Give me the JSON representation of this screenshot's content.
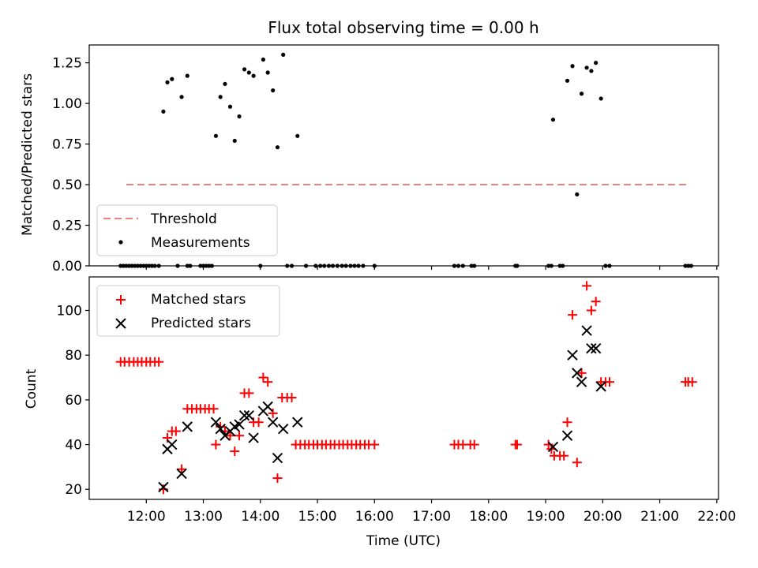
{
  "chart_data": [
    {
      "type": "scatter",
      "title": "Flux total observing time = 0.00 h",
      "xlabel": "",
      "ylabel": "Matched/Predicted stars",
      "ylim": [
        0,
        1.36
      ],
      "yticks": [
        0.0,
        0.25,
        0.5,
        0.75,
        1.0,
        1.25
      ],
      "ytick_labels": [
        "0.00",
        "0.25",
        "0.50",
        "0.75",
        "1.00",
        "1.25"
      ],
      "legend_position": "lower-left",
      "threshold": {
        "name": "Threshold",
        "y": 0.5,
        "x_start": 11.65,
        "x_end": 21.5,
        "color": "#f08080"
      },
      "series": [
        {
          "name": "Measurements",
          "color": "#000000",
          "x": [
            12.3,
            12.37,
            12.45,
            12.62,
            12.72,
            13.22,
            13.3,
            13.38,
            13.47,
            13.55,
            13.63,
            13.72,
            13.8,
            13.88,
            14.05,
            14.13,
            14.22,
            14.3,
            14.4,
            14.65,
            19.13,
            19.38,
            19.47,
            19.55,
            19.63,
            19.72,
            19.8,
            19.88,
            19.97,
            11.55,
            11.6,
            11.65,
            11.7,
            11.75,
            11.8,
            11.85,
            11.9,
            11.95,
            12.0,
            12.05,
            12.1,
            12.15,
            12.22,
            12.55,
            12.72,
            12.77,
            12.95,
            13.0,
            13.05,
            13.1,
            13.15,
            14.0,
            14.47,
            14.55,
            14.8,
            14.97,
            15.05,
            15.12,
            15.2,
            15.27,
            15.35,
            15.43,
            15.5,
            15.58,
            15.65,
            15.72,
            15.8,
            16.0,
            17.4,
            17.47,
            17.55,
            17.7,
            17.75,
            18.47,
            18.5,
            19.05,
            19.1,
            19.25,
            19.3,
            20.05,
            20.12,
            21.45,
            21.5,
            21.55
          ],
          "y": [
            0.95,
            1.13,
            1.15,
            1.04,
            1.17,
            0.8,
            1.04,
            1.12,
            0.98,
            0.77,
            0.92,
            1.21,
            1.19,
            1.17,
            1.27,
            1.19,
            1.08,
            0.73,
            1.3,
            0.8,
            0.9,
            1.14,
            1.23,
            0.44,
            1.06,
            1.22,
            1.2,
            1.25,
            1.03,
            0,
            0,
            0,
            0,
            0,
            0,
            0,
            0,
            0,
            0,
            0,
            0,
            0,
            0,
            0,
            0,
            0,
            0,
            0,
            0,
            0,
            0,
            0,
            0,
            0,
            0,
            0,
            0,
            0,
            0,
            0,
            0,
            0,
            0,
            0,
            0,
            0,
            0,
            0,
            0,
            0,
            0,
            0,
            0,
            0,
            0,
            0,
            0,
            0,
            0,
            0,
            0,
            0,
            0,
            0
          ]
        }
      ]
    },
    {
      "type": "scatter",
      "title": "",
      "xlabel": "Time (UTC)",
      "ylabel": "Count",
      "xlim": [
        11.0,
        22.03
      ],
      "ylim": [
        15.5,
        115
      ],
      "xticks": [
        12,
        13,
        14,
        15,
        16,
        17,
        18,
        19,
        20,
        21,
        22
      ],
      "xtick_labels": [
        "12:00",
        "13:00",
        "14:00",
        "15:00",
        "16:00",
        "17:00",
        "18:00",
        "19:00",
        "20:00",
        "21:00",
        "22:00"
      ],
      "yticks": [
        20,
        40,
        60,
        80,
        100
      ],
      "ytick_labels": [
        "20",
        "40",
        "60",
        "80",
        "100"
      ],
      "legend_position": "upper-left",
      "series": [
        {
          "name": "Matched stars",
          "marker": "plus",
          "color": "#ff0000",
          "x": [
            11.55,
            11.62,
            11.7,
            11.78,
            11.85,
            11.92,
            12.0,
            12.07,
            12.15,
            12.22,
            12.3,
            12.37,
            12.45,
            12.52,
            12.62,
            12.72,
            12.8,
            12.88,
            12.95,
            13.03,
            13.1,
            13.18,
            13.22,
            13.3,
            13.38,
            13.47,
            13.55,
            13.63,
            13.72,
            13.8,
            13.88,
            13.97,
            14.05,
            14.13,
            14.22,
            14.3,
            14.38,
            14.47,
            14.55,
            14.62,
            14.7,
            14.78,
            14.85,
            14.93,
            15.0,
            15.08,
            15.15,
            15.23,
            15.3,
            15.38,
            15.45,
            15.53,
            15.6,
            15.68,
            15.75,
            15.83,
            15.9,
            16.0,
            17.4,
            17.47,
            17.55,
            17.68,
            17.75,
            18.47,
            18.5,
            19.05,
            19.1,
            19.15,
            19.25,
            19.32,
            19.38,
            19.47,
            19.55,
            19.63,
            19.72,
            19.8,
            19.88,
            19.97,
            20.05,
            20.12,
            21.45,
            21.5,
            21.57
          ],
          "y": [
            77,
            77,
            77,
            77,
            77,
            77,
            77,
            77,
            77,
            77,
            20,
            43,
            46,
            46,
            29,
            56,
            56,
            56,
            56,
            56,
            56,
            56,
            40,
            48,
            46,
            44,
            37,
            44,
            63,
            63,
            50,
            50,
            70,
            68,
            54,
            25,
            61,
            61,
            61,
            40,
            40,
            40,
            40,
            40,
            40,
            40,
            40,
            40,
            40,
            40,
            40,
            40,
            40,
            40,
            40,
            40,
            40,
            40,
            40,
            40,
            40,
            40,
            40,
            40,
            40,
            40,
            38,
            35,
            35,
            35,
            50,
            98,
            32,
            72,
            111,
            100,
            104,
            68,
            68,
            68,
            68,
            68,
            68
          ]
        },
        {
          "name": "Predicted stars",
          "marker": "x",
          "color": "#000000",
          "x": [
            12.3,
            12.37,
            12.45,
            12.62,
            12.72,
            13.22,
            13.3,
            13.38,
            13.47,
            13.55,
            13.63,
            13.72,
            13.8,
            13.88,
            14.05,
            14.13,
            14.22,
            14.3,
            14.4,
            14.65,
            19.13,
            19.38,
            19.47,
            19.55,
            19.63,
            19.72,
            19.8,
            19.88,
            19.97
          ],
          "y": [
            21,
            38,
            40,
            27,
            48,
            50,
            47,
            44,
            46,
            48,
            49,
            53,
            53,
            43,
            55,
            57,
            50,
            34,
            47,
            50,
            39,
            44,
            80,
            72,
            68,
            91,
            83,
            83,
            66
          ]
        }
      ]
    }
  ]
}
